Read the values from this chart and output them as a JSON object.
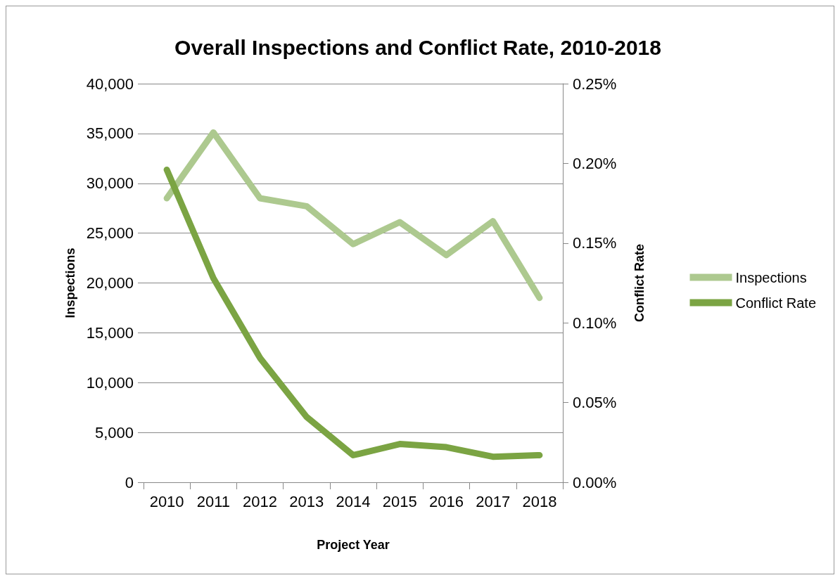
{
  "chart_data": {
    "type": "line",
    "title": "Overall Inspections and Conflict Rate, 2010-2018",
    "xlabel": "Project Year",
    "ylabel": "Inspections",
    "y2label": "Conflict Rate",
    "categories": [
      "2010",
      "2011",
      "2012",
      "2013",
      "2014",
      "2015",
      "2016",
      "2017",
      "2018"
    ],
    "series": [
      {
        "name": "Inspections",
        "color": "#adc98f",
        "values": [
          28500,
          35100,
          28500,
          27700,
          23900,
          26100,
          22800,
          26200,
          18500
        ]
      },
      {
        "name": "Conflict Rate",
        "color": "#7ba443",
        "axis": "y2",
        "values": [
          0.196,
          0.128,
          0.078,
          0.041,
          0.017,
          0.024,
          0.022,
          0.016,
          0.017
        ]
      }
    ],
    "ylim": [
      0,
      40000
    ],
    "yticks": [
      {
        "value": 0,
        "label": "0"
      },
      {
        "value": 5000,
        "label": "5,000"
      },
      {
        "value": 10000,
        "label": "10,000"
      },
      {
        "value": 15000,
        "label": "15,000"
      },
      {
        "value": 20000,
        "label": "20,000"
      },
      {
        "value": 25000,
        "label": "25,000"
      },
      {
        "value": 30000,
        "label": "30,000"
      },
      {
        "value": 35000,
        "label": "35,000"
      },
      {
        "value": 40000,
        "label": "40,000"
      }
    ],
    "y2lim": [
      0,
      0.25
    ],
    "y2ticks": [
      {
        "value": 0,
        "label": "0.00%"
      },
      {
        "value": 0.05,
        "label": "0.05%"
      },
      {
        "value": 0.1,
        "label": "0.10%"
      },
      {
        "value": 0.15,
        "label": "0.15%"
      },
      {
        "value": 0.2,
        "label": "0.20%"
      },
      {
        "value": 0.25,
        "label": "0.25%"
      }
    ],
    "grid": "y",
    "legend": "right",
    "line_style": "solid"
  }
}
